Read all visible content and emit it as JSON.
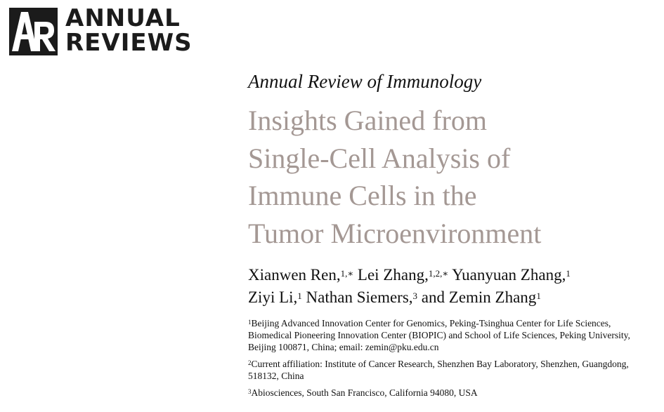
{
  "logo": {
    "mark_icon": "annual-reviews-ar-mark",
    "line1": "ANNUAL",
    "line2": "REVIEWS"
  },
  "journal": "Annual Review of Immunology",
  "title_lines": [
    "Insights Gained from",
    "Single-Cell Analysis of",
    "Immune Cells in the",
    "Tumor Microenvironment"
  ],
  "authors": {
    "a1_name": "Xianwen Ren,",
    "a1_sup": "1,∗",
    "a2_name": "Lei Zhang,",
    "a2_sup": "1,2,∗",
    "a3_name": "Yuanyuan Zhang,",
    "a3_sup": "1",
    "a4_name": "Ziyi Li,",
    "a4_sup": "1",
    "a5_name": "Nathan Siemers,",
    "a5_sup": "3",
    "a5_and": "and",
    "a6_name": "Zemin Zhang",
    "a6_sup": "1"
  },
  "affiliations": [
    {
      "num": "1",
      "text": "Beijing Advanced Innovation Center for Genomics, Peking-Tsinghua Center for Life Sciences, Biomedical Pioneering Innovation Center (BIOPIC) and School of Life Sciences, Peking University, Beijing 100871, China; email: zemin@pku.edu.cn"
    },
    {
      "num": "2",
      "text": "Current affiliation: Institute of Cancer Research, Shenzhen Bay Laboratory, Shenzhen, Guangdong, 518132, China"
    },
    {
      "num": "3",
      "text": "Abiosciences, South San Francisco, California 94080, USA"
    }
  ],
  "colors": {
    "title": "#a49894",
    "logo": "#1b1b1b"
  }
}
